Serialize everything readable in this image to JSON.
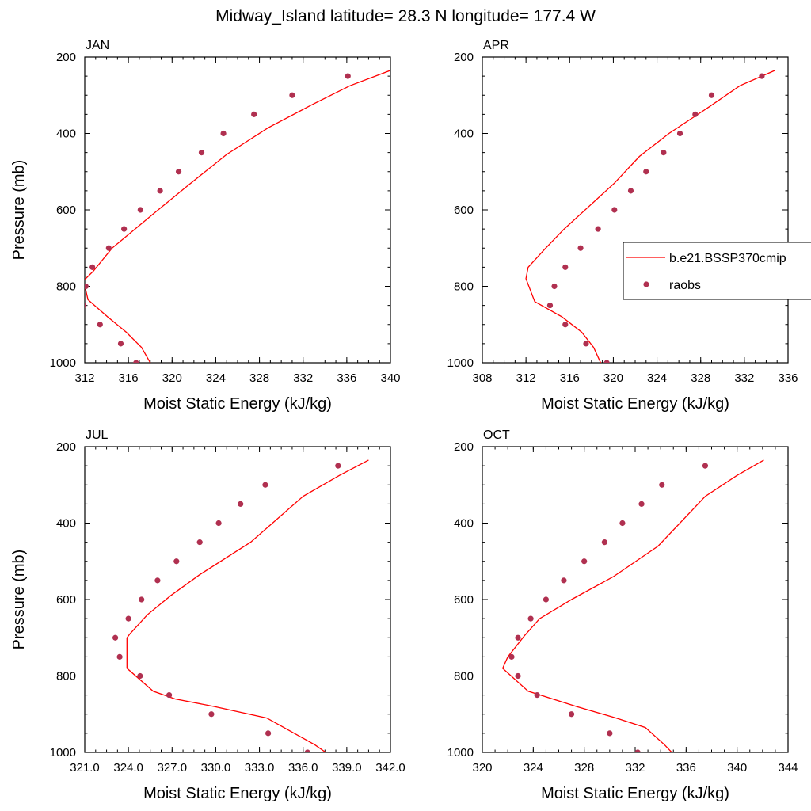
{
  "title": "Midway_Island  latitude= 28.3 N longitude= 177.4 W",
  "colors": {
    "model_line": "#ff0000",
    "raobs_marker": "#b03050",
    "axis": "#000000"
  },
  "legend": {
    "placement": "right of APR panel",
    "entries": [
      "b.e21.BSSP370cmip",
      "raobs"
    ]
  },
  "chart_data": [
    {
      "type": "line",
      "panel_label": "JAN",
      "xlabel": "Moist Static Energy (kJ/kg)",
      "ylabel": "Pressure (mb)",
      "xlim": [
        312,
        340
      ],
      "ylim": [
        1000,
        200
      ],
      "y_reversed": true,
      "xticks": [
        312,
        316,
        320,
        324,
        328,
        332,
        336,
        340
      ],
      "xtick_labels": [
        "312",
        "316",
        "320",
        "324",
        "328",
        "332",
        "336",
        "340"
      ],
      "yticks": [
        200,
        400,
        600,
        800,
        1000
      ],
      "ytick_labels": [
        "200",
        "400",
        "600",
        "800",
        "1000"
      ],
      "series": [
        {
          "name": "b.e21.BSSP370cmip",
          "style": "line",
          "x": [
            340,
            336.3,
            332.8,
            328.8,
            325,
            321.5,
            318.3,
            316.2,
            314.5,
            312.8,
            311.9,
            312.3,
            314.1,
            315.8,
            317.2,
            318.2
          ],
          "y": [
            235,
            275,
            325,
            385,
            455,
            535,
            610,
            660,
            700,
            760,
            785,
            835,
            880,
            920,
            960,
            1010
          ]
        },
        {
          "name": "raobs",
          "style": "markers",
          "x": [
            336.1,
            331,
            327.5,
            324.7,
            322.7,
            320.6,
            318.9,
            317.1,
            315.6,
            314.2,
            312.7,
            312.1,
            311.9,
            313.4,
            315.3,
            316.7
          ],
          "y": [
            250,
            300,
            350,
            400,
            450,
            500,
            550,
            600,
            650,
            700,
            750,
            800,
            850,
            900,
            950,
            1000
          ]
        }
      ]
    },
    {
      "type": "line",
      "panel_label": "APR",
      "xlabel": "Moist Static Energy (kJ/kg)",
      "ylabel": "",
      "xlim": [
        308,
        336
      ],
      "ylim": [
        1000,
        200
      ],
      "y_reversed": true,
      "xticks": [
        308,
        312,
        316,
        320,
        324,
        328,
        332,
        336
      ],
      "xtick_labels": [
        "308",
        "312",
        "316",
        "320",
        "324",
        "328",
        "332",
        "336"
      ],
      "yticks": [
        200,
        400,
        600,
        800,
        1000
      ],
      "ytick_labels": [
        "200",
        "400",
        "600",
        "800",
        "1000"
      ],
      "series": [
        {
          "name": "b.e21.BSSP370cmip",
          "style": "line",
          "x": [
            334.8,
            331.6,
            328.8,
            325.1,
            322.4,
            320.1,
            317.8,
            315.5,
            313.8,
            312.2,
            312,
            312.8,
            315.3,
            317.1,
            318.2,
            319
          ],
          "y": [
            235,
            275,
            330,
            400,
            460,
            530,
            590,
            650,
            700,
            750,
            780,
            840,
            880,
            920,
            960,
            1010
          ]
        },
        {
          "name": "raobs",
          "style": "markers",
          "x": [
            333.6,
            329,
            327.5,
            326.1,
            324.6,
            323,
            321.6,
            320.1,
            318.6,
            317,
            315.6,
            314.6,
            314.2,
            315.6,
            317.5,
            319.4
          ],
          "y": [
            250,
            300,
            350,
            400,
            450,
            500,
            550,
            600,
            650,
            700,
            750,
            800,
            850,
            900,
            950,
            1000
          ]
        }
      ]
    },
    {
      "type": "line",
      "panel_label": "JUL",
      "xlabel": "Moist Static Energy (kJ/kg)",
      "ylabel": "Pressure (mb)",
      "xlim": [
        321,
        342
      ],
      "ylim": [
        1000,
        200
      ],
      "y_reversed": true,
      "xticks": [
        321,
        324,
        327,
        330,
        333,
        336,
        339,
        342
      ],
      "xtick_labels": [
        "321.0",
        "324.0",
        "327.0",
        "330.0",
        "333.0",
        "336.0",
        "339.0",
        "342.0"
      ],
      "yticks": [
        200,
        400,
        600,
        800,
        1000
      ],
      "ytick_labels": [
        "200",
        "400",
        "600",
        "800",
        "1000"
      ],
      "series": [
        {
          "name": "b.e21.BSSP370cmip",
          "style": "line",
          "x": [
            340.5,
            338.5,
            336,
            332.4,
            328.9,
            326.9,
            325.3,
            324.1,
            323.9,
            323.9,
            325.7,
            327.2,
            329.9,
            333.5,
            336.8,
            338.3
          ],
          "y": [
            235,
            275,
            330,
            450,
            535,
            590,
            640,
            690,
            700,
            780,
            840,
            860,
            880,
            910,
            980,
            1020
          ]
        },
        {
          "name": "raobs",
          "style": "markers",
          "x": [
            338.4,
            333.4,
            331.7,
            330.2,
            328.9,
            327.3,
            326,
            324.9,
            324,
            323.1,
            323.4,
            324.8,
            326.8,
            329.7,
            333.6,
            336.3
          ],
          "y": [
            250,
            300,
            350,
            400,
            450,
            500,
            550,
            600,
            650,
            700,
            750,
            800,
            850,
            900,
            950,
            1000
          ]
        }
      ]
    },
    {
      "type": "line",
      "panel_label": "OCT",
      "xlabel": "Moist Static Energy (kJ/kg)",
      "ylabel": "",
      "xlim": [
        320,
        344
      ],
      "ylim": [
        1000,
        200
      ],
      "y_reversed": true,
      "xticks": [
        320,
        324,
        328,
        332,
        336,
        340,
        344
      ],
      "xtick_labels": [
        "320",
        "324",
        "328",
        "332",
        "336",
        "340",
        "344"
      ],
      "yticks": [
        200,
        400,
        600,
        800,
        1000
      ],
      "ytick_labels": [
        "200",
        "400",
        "600",
        "800",
        "1000"
      ],
      "series": [
        {
          "name": "b.e21.BSSP370cmip",
          "style": "line",
          "x": [
            342.1,
            340,
            337.5,
            333.8,
            330.3,
            327,
            324.5,
            323.3,
            322,
            321.6,
            323.6,
            327.4,
            330.5,
            332.8,
            334.3,
            335.3
          ],
          "y": [
            235,
            275,
            330,
            460,
            540,
            600,
            650,
            695,
            750,
            780,
            840,
            880,
            910,
            935,
            980,
            1015
          ]
        },
        {
          "name": "raobs",
          "style": "markers",
          "x": [
            337.5,
            334.1,
            332.5,
            331,
            329.6,
            328,
            326.4,
            325,
            323.8,
            322.8,
            322.3,
            322.8,
            324.3,
            327,
            330,
            332.2
          ],
          "y": [
            250,
            300,
            350,
            400,
            450,
            500,
            550,
            600,
            650,
            700,
            750,
            800,
            850,
            900,
            950,
            1000
          ]
        }
      ]
    }
  ]
}
